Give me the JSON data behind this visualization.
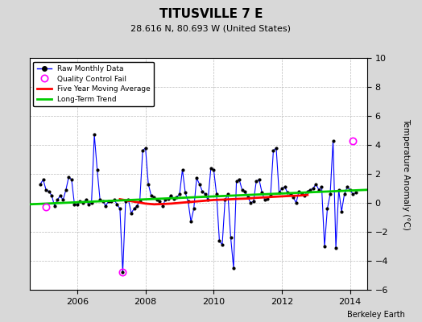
{
  "title": "TITUSVILLE 7 E",
  "subtitle": "28.616 N, 80.693 W (United States)",
  "ylabel": "Temperature Anomaly (°C)",
  "credit": "Berkeley Earth",
  "ylim": [
    -6,
    10
  ],
  "yticks": [
    -6,
    -4,
    -2,
    0,
    2,
    4,
    6,
    8,
    10
  ],
  "xlim": [
    2004.6,
    2014.5
  ],
  "xticks": [
    2006,
    2008,
    2010,
    2012,
    2014
  ],
  "bg_color": "#d8d8d8",
  "plot_bg_color": "#ffffff",
  "raw_color": "#0000ff",
  "ma_color": "#ff0000",
  "trend_color": "#00cc00",
  "qc_color": "#ff00ff",
  "raw_monthly": [
    [
      2004.917,
      1.3
    ],
    [
      2005.0,
      1.6
    ],
    [
      2005.083,
      0.9
    ],
    [
      2005.167,
      0.8
    ],
    [
      2005.25,
      0.5
    ],
    [
      2005.333,
      -0.2
    ],
    [
      2005.417,
      0.2
    ],
    [
      2005.5,
      0.5
    ],
    [
      2005.583,
      0.2
    ],
    [
      2005.667,
      0.9
    ],
    [
      2005.75,
      1.8
    ],
    [
      2005.833,
      1.6
    ],
    [
      2005.917,
      -0.1
    ],
    [
      2006.0,
      -0.1
    ],
    [
      2006.083,
      0.1
    ],
    [
      2006.167,
      0.0
    ],
    [
      2006.25,
      0.2
    ],
    [
      2006.333,
      -0.1
    ],
    [
      2006.417,
      0.0
    ],
    [
      2006.5,
      4.7
    ],
    [
      2006.583,
      2.3
    ],
    [
      2006.667,
      0.2
    ],
    [
      2006.75,
      0.1
    ],
    [
      2006.833,
      -0.2
    ],
    [
      2006.917,
      0.1
    ],
    [
      2007.0,
      0.1
    ],
    [
      2007.083,
      0.2
    ],
    [
      2007.167,
      -0.1
    ],
    [
      2007.25,
      -0.4
    ],
    [
      2007.333,
      -4.8
    ],
    [
      2007.417,
      0.1
    ],
    [
      2007.5,
      0.2
    ],
    [
      2007.583,
      -0.7
    ],
    [
      2007.667,
      -0.4
    ],
    [
      2007.75,
      -0.2
    ],
    [
      2007.833,
      0.1
    ],
    [
      2007.917,
      3.6
    ],
    [
      2008.0,
      3.8
    ],
    [
      2008.083,
      1.3
    ],
    [
      2008.167,
      0.5
    ],
    [
      2008.25,
      0.4
    ],
    [
      2008.333,
      0.2
    ],
    [
      2008.417,
      0.1
    ],
    [
      2008.5,
      -0.2
    ],
    [
      2008.583,
      0.2
    ],
    [
      2008.667,
      0.3
    ],
    [
      2008.75,
      0.5
    ],
    [
      2008.833,
      0.3
    ],
    [
      2008.917,
      0.4
    ],
    [
      2009.0,
      0.6
    ],
    [
      2009.083,
      2.3
    ],
    [
      2009.167,
      0.7
    ],
    [
      2009.25,
      0.1
    ],
    [
      2009.333,
      -1.3
    ],
    [
      2009.417,
      -0.4
    ],
    [
      2009.5,
      1.7
    ],
    [
      2009.583,
      1.3
    ],
    [
      2009.667,
      0.8
    ],
    [
      2009.75,
      0.6
    ],
    [
      2009.833,
      0.2
    ],
    [
      2009.917,
      2.4
    ],
    [
      2010.0,
      2.3
    ],
    [
      2010.083,
      0.6
    ],
    [
      2010.167,
      -2.6
    ],
    [
      2010.25,
      -2.9
    ],
    [
      2010.333,
      0.2
    ],
    [
      2010.417,
      0.6
    ],
    [
      2010.5,
      -2.4
    ],
    [
      2010.583,
      -4.5
    ],
    [
      2010.667,
      1.5
    ],
    [
      2010.75,
      1.6
    ],
    [
      2010.833,
      0.9
    ],
    [
      2010.917,
      0.8
    ],
    [
      2011.0,
      0.4
    ],
    [
      2011.083,
      0.0
    ],
    [
      2011.167,
      0.1
    ],
    [
      2011.25,
      1.5
    ],
    [
      2011.333,
      1.6
    ],
    [
      2011.417,
      0.7
    ],
    [
      2011.5,
      0.2
    ],
    [
      2011.583,
      0.3
    ],
    [
      2011.667,
      0.5
    ],
    [
      2011.75,
      3.6
    ],
    [
      2011.833,
      3.8
    ],
    [
      2011.917,
      0.7
    ],
    [
      2012.0,
      1.0
    ],
    [
      2012.083,
      1.1
    ],
    [
      2012.167,
      0.7
    ],
    [
      2012.25,
      0.6
    ],
    [
      2012.333,
      0.4
    ],
    [
      2012.417,
      0.0
    ],
    [
      2012.5,
      0.8
    ],
    [
      2012.583,
      0.6
    ],
    [
      2012.667,
      0.5
    ],
    [
      2012.75,
      0.8
    ],
    [
      2012.833,
      0.9
    ],
    [
      2012.917,
      1.0
    ],
    [
      2013.0,
      1.3
    ],
    [
      2013.083,
      0.9
    ],
    [
      2013.167,
      1.1
    ],
    [
      2013.25,
      -3.0
    ],
    [
      2013.333,
      -0.4
    ],
    [
      2013.417,
      0.6
    ],
    [
      2013.5,
      4.3
    ],
    [
      2013.583,
      -3.1
    ],
    [
      2013.667,
      0.9
    ],
    [
      2013.75,
      -0.6
    ],
    [
      2013.833,
      0.6
    ],
    [
      2013.917,
      1.1
    ],
    [
      2014.0,
      0.9
    ],
    [
      2014.083,
      0.6
    ],
    [
      2014.167,
      0.7
    ]
  ],
  "qc_fail_points": [
    [
      2005.083,
      -0.3
    ],
    [
      2007.333,
      -4.8
    ],
    [
      2014.083,
      4.3
    ]
  ],
  "moving_avg": [
    [
      2007.25,
      0.25
    ],
    [
      2007.5,
      0.15
    ],
    [
      2007.75,
      0.05
    ],
    [
      2008.0,
      -0.05
    ],
    [
      2008.25,
      -0.1
    ],
    [
      2008.5,
      -0.08
    ],
    [
      2008.75,
      -0.05
    ],
    [
      2009.0,
      0.0
    ],
    [
      2009.25,
      0.05
    ],
    [
      2009.5,
      0.1
    ],
    [
      2009.75,
      0.15
    ],
    [
      2010.0,
      0.2
    ],
    [
      2010.25,
      0.22
    ],
    [
      2010.5,
      0.25
    ],
    [
      2010.75,
      0.28
    ],
    [
      2011.0,
      0.3
    ],
    [
      2011.25,
      0.35
    ],
    [
      2011.5,
      0.38
    ],
    [
      2011.75,
      0.42
    ],
    [
      2012.0,
      0.45
    ],
    [
      2012.25,
      0.48
    ],
    [
      2012.5,
      0.5
    ],
    [
      2012.75,
      0.55
    ]
  ],
  "trend_x": [
    2004.6,
    2014.5
  ],
  "trend_y": [
    -0.1,
    0.9
  ]
}
